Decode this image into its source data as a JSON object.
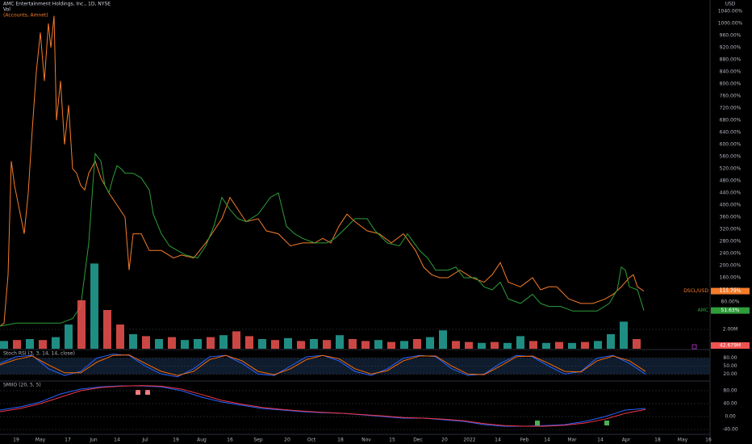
{
  "header": {
    "title": "AMC Entertainment Holdings, Inc., 1D, NYSE",
    "volume": "Vol",
    "compare": "(Accounts, Amnet)",
    "currency": "USD"
  },
  "chart_data": [
    {
      "type": "line",
      "xlim": [
        0,
        880
      ],
      "ylim": [
        0,
        1040
      ],
      "yticks": [
        {
          "value": 80,
          "label": "80.00%"
        },
        {
          "value": 120,
          "label": "120.00%"
        },
        {
          "value": 160,
          "label": "160.00%"
        },
        {
          "value": 200,
          "label": "200.00%"
        },
        {
          "value": 240,
          "label": "240.00%"
        },
        {
          "value": 280,
          "label": "280.00%"
        },
        {
          "value": 320,
          "label": "320.00%"
        },
        {
          "value": 360,
          "label": "360.00%"
        },
        {
          "value": 400,
          "label": "400.00%"
        },
        {
          "value": 440,
          "label": "440.00%"
        },
        {
          "value": 480,
          "label": "480.00%"
        },
        {
          "value": 520,
          "label": "520.00%"
        },
        {
          "value": 560,
          "label": "560.00%"
        },
        {
          "value": 600,
          "label": "600.00%"
        },
        {
          "value": 640,
          "label": "640.00%"
        },
        {
          "value": 680,
          "label": "680.00%"
        },
        {
          "value": 720,
          "label": "720.00%"
        },
        {
          "value": 760,
          "label": "760.00%"
        },
        {
          "value": 800,
          "label": "800.00%"
        },
        {
          "value": 840,
          "label": "840.00%"
        },
        {
          "value": 880,
          "label": "880.00%"
        },
        {
          "value": 920,
          "label": "920.00%"
        },
        {
          "value": 960,
          "label": "960.00%"
        },
        {
          "value": 1000,
          "label": "1000.00%"
        },
        {
          "value": 1040,
          "label": "1040.00%"
        }
      ],
      "xticks": [
        {
          "value": 20,
          "label": "19"
        },
        {
          "value": 50,
          "label": "May"
        },
        {
          "value": 84,
          "label": "17"
        },
        {
          "value": 116,
          "label": "Jun"
        },
        {
          "value": 145,
          "label": "14"
        },
        {
          "value": 180,
          "label": "Jul"
        },
        {
          "value": 218,
          "label": "19"
        },
        {
          "value": 250,
          "label": "Aug"
        },
        {
          "value": 285,
          "label": "16"
        },
        {
          "value": 320,
          "label": "Sep"
        },
        {
          "value": 356,
          "label": "20"
        },
        {
          "value": 386,
          "label": "Oct"
        },
        {
          "value": 422,
          "label": "18"
        },
        {
          "value": 454,
          "label": "Nov"
        },
        {
          "value": 486,
          "label": "15"
        },
        {
          "value": 518,
          "label": "Dec"
        },
        {
          "value": 551,
          "label": "20"
        },
        {
          "value": 582,
          "label": "2022"
        },
        {
          "value": 617,
          "label": "14"
        },
        {
          "value": 650,
          "label": "Feb"
        },
        {
          "value": 678,
          "label": "14"
        },
        {
          "value": 709,
          "label": "Mar"
        },
        {
          "value": 744,
          "label": "14"
        },
        {
          "value": 776,
          "label": "Apr"
        },
        {
          "value": 815,
          "label": "18"
        },
        {
          "value": 846,
          "label": "May"
        },
        {
          "value": 878,
          "label": "16"
        }
      ],
      "series": [
        {
          "name": "DSCL/USD",
          "color": "#f57c2a",
          "badge": "115.79%",
          "x": [
            0,
            5,
            10,
            14,
            18,
            24,
            30,
            35,
            40,
            45,
            50,
            55,
            60,
            63,
            67,
            70,
            75,
            80,
            85,
            90,
            95,
            100,
            105,
            110,
            118,
            125,
            135,
            145,
            155,
            160,
            165,
            175,
            185,
            200,
            215,
            225,
            240,
            255,
            265,
            275,
            285,
            295,
            305,
            320,
            330,
            345,
            360,
            375,
            390,
            400,
            410,
            420,
            430,
            440,
            455,
            470,
            485,
            500,
            515,
            525,
            535,
            545,
            555,
            570,
            585,
            600,
            610,
            620,
            630,
            645,
            660,
            670,
            680,
            690,
            705,
            720,
            735,
            750,
            760,
            770,
            780,
            785,
            790,
            798
          ],
          "values": [
            0,
            10,
            170,
            545,
            465,
            385,
            305,
            440,
            650,
            840,
            970,
            810,
            1000,
            920,
            1025,
            680,
            810,
            600,
            730,
            520,
            505,
            465,
            450,
            505,
            545,
            490,
            440,
            400,
            360,
            185,
            305,
            305,
            250,
            250,
            225,
            235,
            225,
            275,
            315,
            355,
            425,
            385,
            345,
            355,
            315,
            305,
            265,
            275,
            275,
            290,
            275,
            330,
            370,
            345,
            315,
            305,
            275,
            305,
            250,
            195,
            170,
            160,
            160,
            185,
            160,
            145,
            170,
            210,
            145,
            130,
            160,
            120,
            130,
            130,
            90,
            75,
            75,
            90,
            105,
            130,
            160,
            170,
            130,
            115.79
          ]
        },
        {
          "name": "AMC",
          "color": "#2e9d3a",
          "badge": "51.63%",
          "x": [
            0,
            20,
            50,
            75,
            90,
            100,
            110,
            115,
            118,
            125,
            130,
            135,
            140,
            145,
            150,
            155,
            165,
            175,
            185,
            190,
            200,
            210,
            220,
            230,
            245,
            255,
            265,
            275,
            285,
            295,
            305,
            320,
            335,
            345,
            355,
            365,
            375,
            390,
            405,
            415,
            425,
            440,
            455,
            465,
            480,
            495,
            505,
            520,
            530,
            540,
            555,
            565,
            575,
            590,
            600,
            610,
            620,
            630,
            645,
            660,
            670,
            680,
            695,
            710,
            725,
            740,
            755,
            765,
            770,
            775,
            780,
            790,
            798
          ],
          "values": [
            0,
            10,
            10,
            10,
            25,
            65,
            275,
            465,
            570,
            545,
            465,
            440,
            490,
            530,
            520,
            505,
            505,
            490,
            450,
            370,
            305,
            265,
            250,
            235,
            225,
            265,
            330,
            425,
            385,
            355,
            345,
            370,
            425,
            440,
            330,
            305,
            290,
            275,
            275,
            290,
            315,
            355,
            355,
            315,
            275,
            265,
            305,
            250,
            225,
            185,
            185,
            195,
            160,
            160,
            130,
            120,
            145,
            90,
            75,
            105,
            75,
            65,
            65,
            50,
            50,
            50,
            75,
            120,
            195,
            185,
            130,
            120,
            51.63
          ]
        }
      ]
    },
    {
      "type": "bar",
      "xlim": [
        0,
        880
      ],
      "ylim": [
        0,
        10
      ],
      "yticks": [
        {
          "value": 2,
          "label": "2.00M"
        }
      ],
      "badge": "42.679M",
      "x": [
        5,
        21,
        37,
        53,
        69,
        85,
        101,
        117,
        133,
        149,
        165,
        181,
        197,
        213,
        229,
        245,
        261,
        277,
        293,
        309,
        325,
        341,
        357,
        373,
        389,
        405,
        421,
        437,
        453,
        469,
        485,
        501,
        517,
        533,
        549,
        565,
        581,
        597,
        613,
        629,
        645,
        661,
        677,
        693,
        709,
        725,
        741,
        757,
        773,
        789
      ],
      "values": [
        0.8,
        0.9,
        1.0,
        0.9,
        1.2,
        2.5,
        5,
        8.8,
        4,
        2.5,
        1.5,
        1.3,
        1.0,
        1.2,
        0.9,
        1.0,
        1.2,
        1.4,
        1.8,
        1.3,
        1.0,
        0.9,
        1.1,
        0.8,
        1.0,
        0.9,
        1.4,
        1.0,
        0.8,
        0.9,
        0.7,
        0.8,
        1.0,
        1.2,
        1.9,
        0.8,
        0.7,
        0.6,
        0.7,
        0.6,
        1.3,
        0.8,
        0.6,
        0.7,
        0.6,
        0.7,
        0.8,
        1.5,
        2.8,
        1.0
      ],
      "colors": [
        "#26a69a",
        "#ef5350",
        "#26a69a",
        "#ef5350",
        "#26a69a",
        "#26a69a",
        "#ef5350",
        "#26a69a",
        "#ef5350",
        "#ef5350",
        "#26a69a",
        "#ef5350",
        "#26a69a",
        "#ef5350",
        "#26a69a",
        "#26a69a",
        "#ef5350",
        "#26a69a",
        "#ef5350",
        "#ef5350",
        "#26a69a",
        "#ef5350",
        "#26a69a",
        "#ef5350",
        "#26a69a",
        "#ef5350",
        "#26a69a",
        "#ef5350",
        "#ef5350",
        "#26a69a",
        "#ef5350",
        "#26a69a",
        "#ef5350",
        "#26a69a",
        "#26a69a",
        "#ef5350",
        "#ef5350",
        "#26a69a",
        "#ef5350",
        "#26a69a",
        "#26a69a",
        "#ef5350",
        "#26a69a",
        "#ef5350",
        "#26a69a",
        "#ef5350",
        "#26a69a",
        "#26a69a",
        "#26a69a",
        "#ef5350"
      ]
    },
    {
      "type": "line",
      "title": "Stoch RSI (3, 3, 14, 14, close)",
      "xlim": [
        0,
        880
      ],
      "ylim": [
        0,
        100
      ],
      "band": [
        20,
        80
      ],
      "yticks": [
        {
          "value": 80,
          "label": "80.00"
        },
        {
          "value": 50,
          "label": "50.00"
        },
        {
          "value": 20,
          "label": "20.00"
        }
      ],
      "series": [
        {
          "name": "K",
          "color": "#2962ff",
          "x": [
            0,
            20,
            40,
            60,
            80,
            100,
            120,
            140,
            160,
            180,
            200,
            220,
            240,
            260,
            280,
            300,
            320,
            340,
            360,
            380,
            400,
            420,
            440,
            460,
            480,
            500,
            520,
            540,
            560,
            580,
            600,
            620,
            640,
            660,
            680,
            700,
            720,
            740,
            760,
            780,
            800
          ],
          "values": [
            60,
            85,
            90,
            40,
            15,
            30,
            80,
            95,
            90,
            50,
            20,
            10,
            40,
            85,
            90,
            60,
            20,
            15,
            50,
            85,
            90,
            70,
            30,
            15,
            40,
            80,
            90,
            85,
            40,
            15,
            20,
            60,
            90,
            85,
            50,
            20,
            30,
            80,
            90,
            60,
            20
          ]
        },
        {
          "name": "D",
          "color": "#ff6d00",
          "x": [
            0,
            20,
            40,
            60,
            80,
            100,
            120,
            140,
            160,
            180,
            200,
            220,
            240,
            260,
            280,
            300,
            320,
            340,
            360,
            380,
            400,
            420,
            440,
            460,
            480,
            500,
            520,
            540,
            560,
            580,
            600,
            620,
            640,
            660,
            680,
            700,
            720,
            740,
            760,
            780,
            800
          ],
          "values": [
            55,
            75,
            88,
            55,
            25,
            25,
            65,
            90,
            92,
            60,
            30,
            15,
            30,
            75,
            90,
            70,
            30,
            18,
            40,
            75,
            90,
            78,
            40,
            20,
            33,
            70,
            88,
            88,
            50,
            20,
            18,
            50,
            85,
            88,
            60,
            30,
            28,
            70,
            88,
            70,
            30
          ]
        }
      ]
    },
    {
      "type": "line",
      "title": "SMIIO (20, 5, 5)",
      "xlim": [
        0,
        880
      ],
      "ylim": [
        -60,
        100
      ],
      "yticks": [
        {
          "value": 80,
          "label": "80.00"
        },
        {
          "value": 40,
          "label": "40.00"
        },
        {
          "value": 0,
          "label": "0.00"
        },
        {
          "value": -40,
          "label": "-40.00"
        }
      ],
      "series": [
        {
          "name": "SMI",
          "color": "#2962ff",
          "x": [
            0,
            25,
            50,
            75,
            100,
            125,
            150,
            175,
            200,
            225,
            250,
            275,
            300,
            325,
            350,
            375,
            400,
            425,
            450,
            475,
            500,
            525,
            550,
            575,
            600,
            625,
            650,
            675,
            700,
            725,
            750,
            775,
            800
          ],
          "values": [
            20,
            30,
            45,
            70,
            85,
            92,
            95,
            95,
            92,
            80,
            60,
            45,
            35,
            25,
            20,
            15,
            12,
            10,
            5,
            0,
            -5,
            -5,
            -10,
            -15,
            -25,
            -30,
            -30,
            -28,
            -25,
            -15,
            0,
            20,
            25
          ]
        },
        {
          "name": "Signal",
          "color": "#f23645",
          "x": [
            0,
            25,
            50,
            75,
            100,
            125,
            150,
            175,
            200,
            225,
            250,
            275,
            300,
            325,
            350,
            375,
            400,
            425,
            450,
            475,
            500,
            525,
            550,
            575,
            600,
            625,
            650,
            675,
            700,
            725,
            750,
            775,
            800
          ],
          "values": [
            15,
            25,
            40,
            60,
            80,
            90,
            94,
            96,
            94,
            85,
            68,
            50,
            38,
            28,
            22,
            17,
            13,
            10,
            6,
            2,
            -3,
            -5,
            -8,
            -13,
            -22,
            -28,
            -30,
            -30,
            -27,
            -20,
            -8,
            10,
            22
          ]
        }
      ]
    }
  ]
}
